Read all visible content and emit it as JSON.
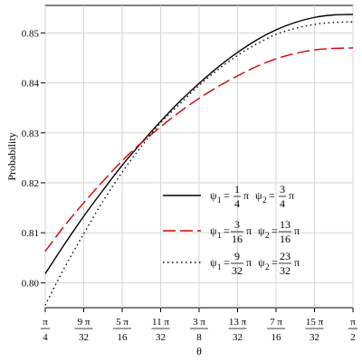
{
  "chart_data": {
    "type": "line",
    "xlabel": "θ",
    "ylabel": "Probability",
    "xlim": [
      0.7853981634,
      1.5707963268
    ],
    "ylim": [
      0.795,
      0.8555
    ],
    "grid": true,
    "legend_position": "right",
    "x_ticks": [
      {
        "value": 0.7853981634,
        "num": "π",
        "den": "4"
      },
      {
        "value": 0.8835729338,
        "num": "9 π",
        "den": "32"
      },
      {
        "value": 0.9817477042,
        "num": "5 π",
        "den": "16"
      },
      {
        "value": 1.0799224747,
        "num": "11 π",
        "den": "32"
      },
      {
        "value": 1.1780972451,
        "num": "3 π",
        "den": "8"
      },
      {
        "value": 1.2762720155,
        "num": "13 π",
        "den": "32"
      },
      {
        "value": 1.3744467859,
        "num": "7 π",
        "den": "16"
      },
      {
        "value": 1.4726215564,
        "num": "15 π",
        "den": "32"
      },
      {
        "value": 1.5707963268,
        "num": "π",
        "den": "2"
      }
    ],
    "y_ticks": [
      0.8,
      0.81,
      0.82,
      0.83,
      0.84,
      0.85
    ],
    "y_tick_labels": [
      "0.80",
      "0.81",
      "0.82",
      "0.83",
      "0.84",
      "0.85"
    ],
    "series": [
      {
        "color": "#000000",
        "dash": "solid",
        "legend": {
          "psi1_num": "1",
          "psi1_den": "4",
          "psi2_num": "3",
          "psi2_den": "4"
        },
        "x": [
          0.7854,
          0.8345,
          0.8836,
          0.9327,
          0.9817,
          1.0308,
          1.0799,
          1.129,
          1.1781,
          1.2272,
          1.2763,
          1.3254,
          1.3744,
          1.4235,
          1.4726,
          1.5217,
          1.5708
        ],
        "y": [
          0.8018,
          0.8077,
          0.8133,
          0.8185,
          0.8235,
          0.828,
          0.8323,
          0.8363,
          0.8399,
          0.8432,
          0.8461,
          0.8486,
          0.8506,
          0.8521,
          0.8531,
          0.8536,
          0.8537
        ]
      },
      {
        "color": "#d40000",
        "dash": "long-dash",
        "legend": {
          "psi1_num": "3",
          "psi1_den": "16",
          "psi2_num": "13",
          "psi2_den": "16"
        },
        "x": [
          0.7854,
          0.8345,
          0.8836,
          0.9327,
          0.9817,
          1.0308,
          1.0799,
          1.129,
          1.1781,
          1.2272,
          1.2763,
          1.3254,
          1.3744,
          1.4235,
          1.4726,
          1.5217,
          1.5708
        ],
        "y": [
          0.8063,
          0.8114,
          0.816,
          0.8203,
          0.8244,
          0.828,
          0.8312,
          0.8342,
          0.8369,
          0.8393,
          0.8414,
          0.8433,
          0.8448,
          0.8459,
          0.8466,
          0.8469,
          0.847
        ]
      },
      {
        "color": "#000000",
        "dash": "dotted",
        "legend": {
          "psi1_num": "9",
          "psi1_den": "32",
          "psi2_num": "23",
          "psi2_den": "32"
        },
        "x": [
          0.7854,
          0.8345,
          0.8836,
          0.9327,
          0.9817,
          1.0308,
          1.0799,
          1.129,
          1.1781,
          1.2272,
          1.2763,
          1.3254,
          1.3744,
          1.4235,
          1.4726,
          1.5217,
          1.5708
        ],
        "y": [
          0.7955,
          0.803,
          0.8098,
          0.8163,
          0.8221,
          0.8273,
          0.832,
          0.8358,
          0.8395,
          0.8427,
          0.8455,
          0.8478,
          0.8497,
          0.8509,
          0.8517,
          0.8521,
          0.8522
        ]
      }
    ]
  },
  "legend_text": {
    "psi": "ψ",
    "sub1": "1",
    "sub2": "2",
    "equals": "=",
    "pi": "π"
  }
}
